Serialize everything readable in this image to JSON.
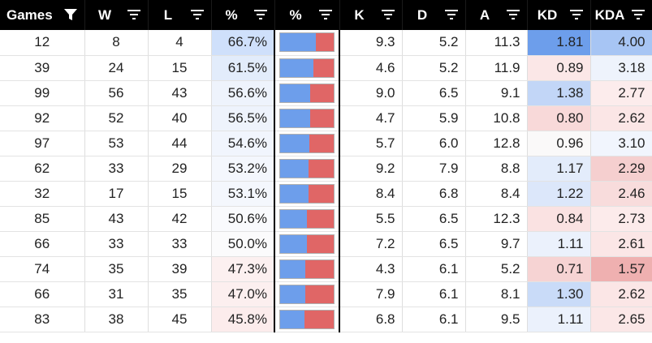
{
  "header": [
    {
      "label": "Games",
      "icon": "filter-active-icon"
    },
    {
      "label": "W",
      "icon": "filter-icon"
    },
    {
      "label": "L",
      "icon": "filter-icon"
    },
    {
      "label": "%",
      "icon": "filter-icon"
    },
    {
      "label": "%",
      "icon": "filter-icon"
    },
    {
      "label": "K",
      "icon": "filter-icon"
    },
    {
      "label": "D",
      "icon": "filter-icon"
    },
    {
      "label": "A",
      "icon": "filter-icon"
    },
    {
      "label": "KD",
      "icon": "filter-icon"
    },
    {
      "label": "KDA",
      "icon": "filter-icon"
    }
  ],
  "colors": {
    "win_bar": "#6d9eeb",
    "loss_bar": "#e06666",
    "header_bg": "#000000"
  },
  "rows": [
    {
      "games": "12",
      "w": "8",
      "l": "4",
      "pct": "66.7%",
      "win_rate": 0.667,
      "k": "9.3",
      "d": "5.2",
      "a": "11.3",
      "kd": "1.81",
      "kda": "4.00",
      "pct_bg": "#cfe0fb",
      "kd_bg": "#6d9eeb",
      "kda_bg": "#a7c5f4"
    },
    {
      "games": "39",
      "w": "24",
      "l": "15",
      "pct": "61.5%",
      "win_rate": 0.615,
      "k": "4.6",
      "d": "5.2",
      "a": "11.9",
      "kd": "0.89",
      "kda": "3.18",
      "pct_bg": "#e2ecfb",
      "kd_bg": "#fbe7e7",
      "kda_bg": "#eef3fc"
    },
    {
      "games": "99",
      "w": "56",
      "l": "43",
      "pct": "56.6%",
      "win_rate": 0.566,
      "k": "9.0",
      "d": "6.5",
      "a": "9.1",
      "kd": "1.38",
      "kda": "2.77",
      "pct_bg": "#eef3fc",
      "kd_bg": "#c2d6f7",
      "kda_bg": "#fcecec"
    },
    {
      "games": "92",
      "w": "52",
      "l": "40",
      "pct": "56.5%",
      "win_rate": 0.565,
      "k": "4.7",
      "d": "5.9",
      "a": "10.8",
      "kd": "0.80",
      "kda": "2.62",
      "pct_bg": "#eef3fc",
      "kd_bg": "#f8d9d9",
      "kda_bg": "#fbe6e6"
    },
    {
      "games": "97",
      "w": "53",
      "l": "44",
      "pct": "54.6%",
      "win_rate": 0.546,
      "k": "5.7",
      "d": "6.0",
      "a": "12.8",
      "kd": "0.96",
      "kda": "3.10",
      "pct_bg": "#f1f5fd",
      "kd_bg": "#faf9f9",
      "kda_bg": "#f1f5fd"
    },
    {
      "games": "62",
      "w": "33",
      "l": "29",
      "pct": "53.2%",
      "win_rate": 0.532,
      "k": "9.2",
      "d": "7.9",
      "a": "8.8",
      "kd": "1.17",
      "kda": "2.29",
      "pct_bg": "#f4f7fd",
      "kd_bg": "#e3ecfb",
      "kda_bg": "#f5cfcf"
    },
    {
      "games": "32",
      "w": "17",
      "l": "15",
      "pct": "53.1%",
      "win_rate": 0.531,
      "k": "8.4",
      "d": "6.8",
      "a": "8.4",
      "kd": "1.22",
      "kda": "2.46",
      "pct_bg": "#f4f7fd",
      "kd_bg": "#dce7fa",
      "kda_bg": "#f8dcdc"
    },
    {
      "games": "85",
      "w": "43",
      "l": "42",
      "pct": "50.6%",
      "win_rate": 0.506,
      "k": "5.5",
      "d": "6.5",
      "a": "12.3",
      "kd": "0.84",
      "kda": "2.73",
      "pct_bg": "#f9fafd",
      "kd_bg": "#fae2e2",
      "kda_bg": "#fcebeb"
    },
    {
      "games": "66",
      "w": "33",
      "l": "33",
      "pct": "50.0%",
      "win_rate": 0.5,
      "k": "7.2",
      "d": "6.5",
      "a": "9.7",
      "kd": "1.11",
      "kda": "2.61",
      "pct_bg": "#fbfbfc",
      "kd_bg": "#ebf1fc",
      "kda_bg": "#fbe6e6"
    },
    {
      "games": "74",
      "w": "35",
      "l": "39",
      "pct": "47.3%",
      "win_rate": 0.473,
      "k": "4.3",
      "d": "6.1",
      "a": "5.2",
      "kd": "0.71",
      "kda": "1.57",
      "pct_bg": "#fcf0f0",
      "kd_bg": "#f6d3d3",
      "kda_bg": "#efb0b0"
    },
    {
      "games": "66",
      "w": "31",
      "l": "35",
      "pct": "47.0%",
      "win_rate": 0.47,
      "k": "7.9",
      "d": "6.1",
      "a": "8.1",
      "kd": "1.30",
      "kda": "2.62",
      "pct_bg": "#fcefef",
      "kd_bg": "#c9dbf8",
      "kda_bg": "#fbe6e6"
    },
    {
      "games": "83",
      "w": "38",
      "l": "45",
      "pct": "45.8%",
      "win_rate": 0.458,
      "k": "6.8",
      "d": "6.1",
      "a": "9.5",
      "kd": "1.11",
      "kda": "2.65",
      "pct_bg": "#fcecec",
      "kd_bg": "#ebf1fc",
      "kda_bg": "#fbe7e7"
    }
  ]
}
